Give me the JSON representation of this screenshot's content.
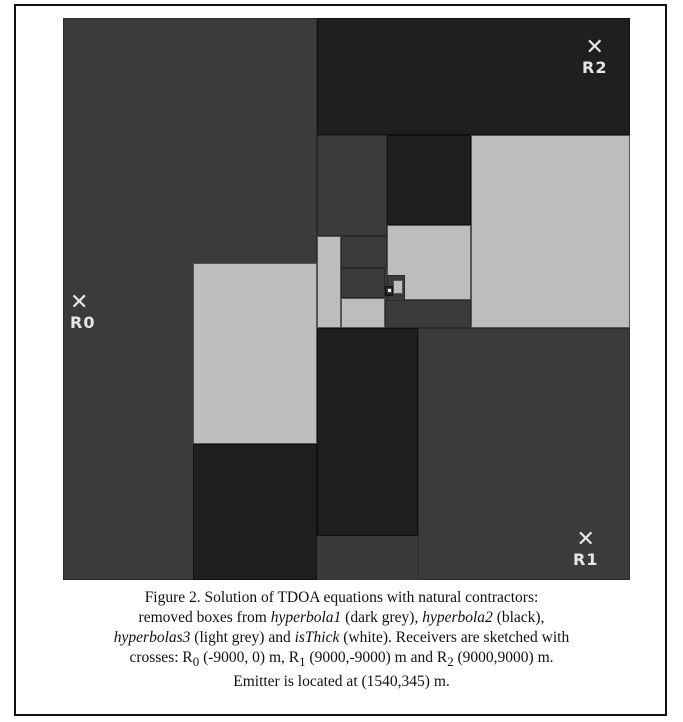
{
  "figure": {
    "receivers": [
      {
        "label": "R0",
        "icon": "cross-icon"
      },
      {
        "label": "R1",
        "icon": "cross-icon"
      },
      {
        "label": "R2",
        "icon": "cross-icon"
      }
    ],
    "colors": {
      "dark_grey": "#3b3b3b",
      "black": "#1f1f1f",
      "light_grey": "#bdbdbd",
      "white": "#ffffff"
    }
  },
  "caption": {
    "line1": "Figure 2.   Solution of TDOA equations with natural contractors:",
    "line2_pre": "removed boxes from ",
    "h1": "hyperbola1",
    "line2_mid": " (dark grey), ",
    "h2": "hyperbola2",
    "line2_post": " (black),",
    "h3": "hyperbolas3",
    "line3_mid": " (light grey) and ",
    "thick": "isThick",
    "line3_post": " (white). Receivers are sketched with",
    "line4_a": "crosses: R",
    "sub0": "0",
    "line4_b": " (-9000, 0) m, R",
    "sub1": "1",
    "line4_c": " (9000,-9000) m and R",
    "sub2": "2",
    "line4_d": " (9000,9000) m.",
    "line5": "Emitter is located at (1540,345) m."
  }
}
